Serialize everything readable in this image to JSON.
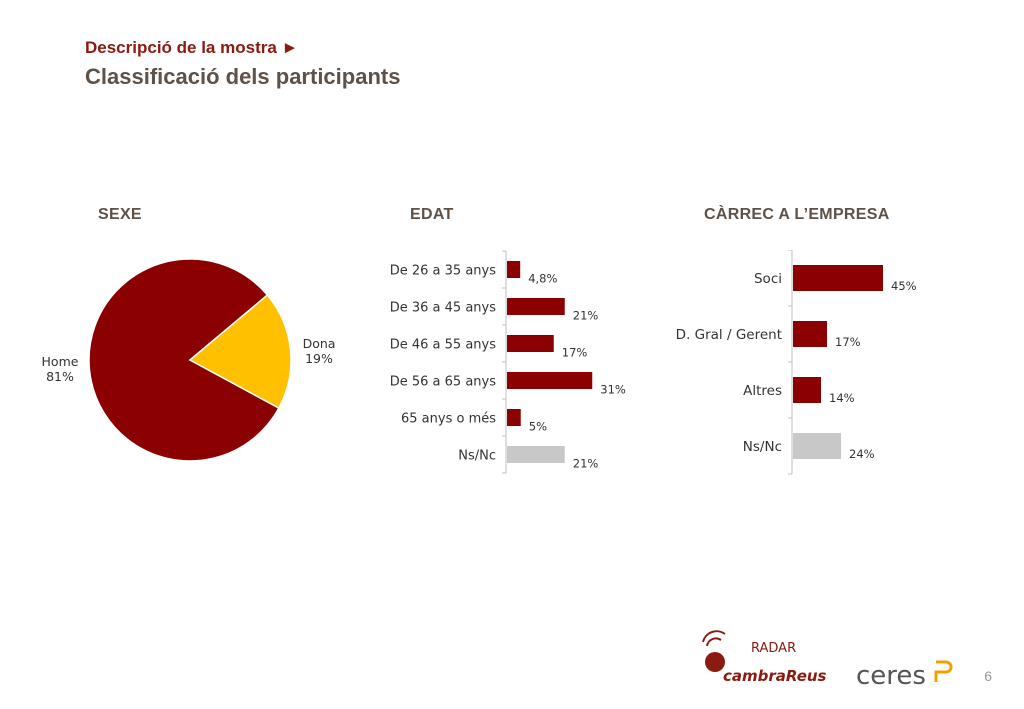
{
  "header": {
    "subtitle": "Descripció de la mostra ►",
    "title": "Classificació dels participants"
  },
  "colors": {
    "primary": "#8b0000",
    "accent": "#ffc000",
    "nsnc": "#c8c8c8",
    "text": "#5d5148",
    "header_red": "#8b1a10"
  },
  "chart_data": [
    {
      "type": "pie",
      "title": "SEXE",
      "labels": [
        "Home",
        "Dona"
      ],
      "values": [
        81,
        19
      ],
      "value_labels": [
        "81%",
        "19%"
      ],
      "colors": [
        "#8b0000",
        "#ffc000"
      ]
    },
    {
      "type": "bar",
      "orientation": "horizontal",
      "title": "EDAT",
      "categories": [
        "De 26 a 35 anys",
        "De 36 a 45 anys",
        "De 46 a 55 anys",
        "De 56 a 65 anys",
        "65 anys o més",
        "Ns/Nc"
      ],
      "values": [
        4.8,
        21,
        17,
        31,
        5,
        21
      ],
      "value_labels": [
        "4,8%",
        "21%",
        "17%",
        "31%",
        "5%",
        "21%"
      ],
      "bar_colors": [
        "#8b0000",
        "#8b0000",
        "#8b0000",
        "#8b0000",
        "#8b0000",
        "#c8c8c8"
      ]
    },
    {
      "type": "bar",
      "orientation": "horizontal",
      "title": "CÀRREC A L’EMPRESA",
      "categories": [
        "Soci",
        "D. Gral / Gerent",
        "Altres",
        "Ns/Nc"
      ],
      "values": [
        45,
        17,
        14,
        24
      ],
      "value_labels": [
        "45%",
        "17%",
        "14%",
        "24%"
      ],
      "bar_colors": [
        "#8b0000",
        "#8b0000",
        "#8b0000",
        "#c8c8c8"
      ]
    }
  ],
  "footer": {
    "page_number": "6",
    "logo_radar_top": "RADAR",
    "logo_radar_bottom": "cambraReus",
    "logo_ceres": "ceres"
  }
}
